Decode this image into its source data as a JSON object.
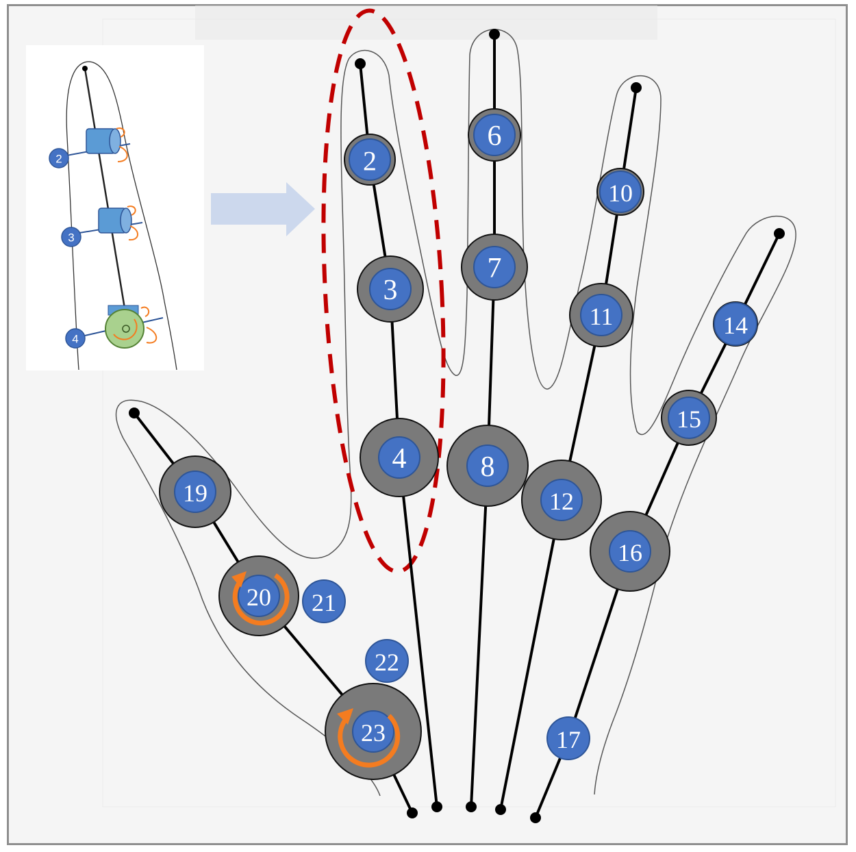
{
  "diagram": {
    "colors": {
      "joint_blue": "#4472c4",
      "joint_gray": "#7a7a7a",
      "bone": "#000000",
      "outline": "#555555",
      "highlight_dashed": "#c00000",
      "rotation_arrow": "#f47c20",
      "inset_cylinder": "#5b9bd5",
      "inset_green": "#92d050",
      "arrow_fill": "#c9d6ec"
    },
    "joints": [
      {
        "id": "2",
        "label": "2"
      },
      {
        "id": "3",
        "label": "3"
      },
      {
        "id": "4",
        "label": "4"
      },
      {
        "id": "6",
        "label": "6"
      },
      {
        "id": "7",
        "label": "7"
      },
      {
        "id": "8",
        "label": "8"
      },
      {
        "id": "10",
        "label": "10"
      },
      {
        "id": "11",
        "label": "11"
      },
      {
        "id": "12",
        "label": "12"
      },
      {
        "id": "14",
        "label": "14"
      },
      {
        "id": "15",
        "label": "15"
      },
      {
        "id": "16",
        "label": "16"
      },
      {
        "id": "17",
        "label": "17"
      },
      {
        "id": "19",
        "label": "19"
      },
      {
        "id": "20",
        "label": "20"
      },
      {
        "id": "21",
        "label": "21"
      },
      {
        "id": "22",
        "label": "22"
      },
      {
        "id": "23",
        "label": "23"
      }
    ],
    "inset": {
      "labels": [
        "2",
        "3",
        "4"
      ]
    }
  }
}
